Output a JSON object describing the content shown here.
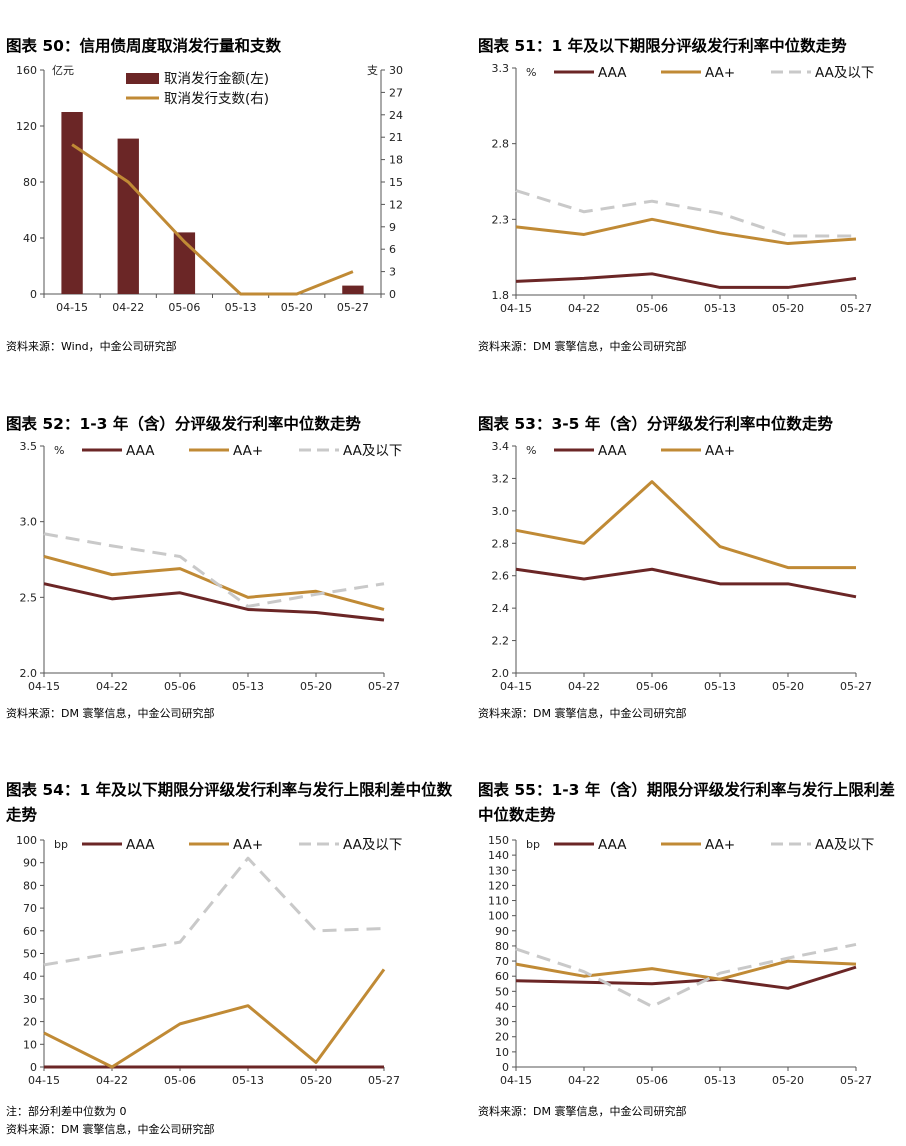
{
  "colors": {
    "aaa": "#6b2626",
    "aaplus": "#c08a35",
    "aabelow": "#c9c9c9",
    "bar": "#6b2626",
    "axis": "#555555"
  },
  "panels": [
    {
      "title": "图表 50：信用债周度取消发行量和支数",
      "source": "资料来源：Wind，中金公司研究部",
      "note": "",
      "chart_data": {
        "type": "bar",
        "categories": [
          "04-15",
          "04-22",
          "05-06",
          "05-13",
          "05-20",
          "05-27"
        ],
        "left_unit": "亿元",
        "right_unit": "支",
        "ylim_left": [
          0,
          160
        ],
        "yticks_left": [
          "0",
          "40",
          "80",
          "120",
          "160"
        ],
        "ylim_right": [
          0,
          30
        ],
        "yticks_right": [
          "0",
          "3",
          "6",
          "9",
          "12",
          "15",
          "18",
          "21",
          "24",
          "27",
          "30"
        ],
        "series": [
          {
            "name": "取消发行金额(左)",
            "kind": "bar",
            "axis": "left",
            "values": [
              130,
              111,
              44,
              0,
              0,
              6
            ]
          },
          {
            "name": "取消发行支数(右)",
            "kind": "line",
            "axis": "right",
            "values": [
              20,
              15,
              7,
              0,
              0,
              3
            ]
          }
        ]
      }
    },
    {
      "title": "图表 51：1 年及以下期限分评级发行利率中位数走势",
      "source": "资料来源：DM 寰擎信息，中金公司研究部",
      "note": "",
      "chart_data": {
        "type": "line",
        "categories": [
          "04-15",
          "04-22",
          "05-06",
          "05-13",
          "05-20",
          "05-27"
        ],
        "unit": "%",
        "ylim": [
          1.8,
          3.3
        ],
        "yticks": [
          "1.8",
          "2.3",
          "2.8",
          "3.3"
        ],
        "series": [
          {
            "name": "AAA",
            "values": [
              1.89,
              1.91,
              1.94,
              1.85,
              1.85,
              1.91
            ]
          },
          {
            "name": "AA+",
            "values": [
              2.25,
              2.2,
              2.3,
              2.21,
              2.14,
              2.17
            ]
          },
          {
            "name": "AA及以下",
            "values": [
              2.49,
              2.35,
              2.42,
              2.34,
              2.19,
              2.19
            ]
          }
        ]
      }
    },
    {
      "title": "图表 52：1-3 年（含）分评级发行利率中位数走势",
      "source": "资料来源：DM 寰擎信息，中金公司研究部",
      "note": "",
      "chart_data": {
        "type": "line",
        "categories": [
          "04-15",
          "04-22",
          "05-06",
          "05-13",
          "05-20",
          "05-27"
        ],
        "unit": "%",
        "ylim": [
          2.0,
          3.5
        ],
        "yticks": [
          "2.0",
          "2.5",
          "3.0",
          "3.5"
        ],
        "series": [
          {
            "name": "AAA",
            "values": [
              2.59,
              2.49,
              2.53,
              2.42,
              2.4,
              2.35
            ]
          },
          {
            "name": "AA+",
            "values": [
              2.77,
              2.65,
              2.69,
              2.5,
              2.54,
              2.42
            ]
          },
          {
            "name": "AA及以下",
            "values": [
              2.92,
              2.84,
              2.77,
              2.44,
              2.52,
              2.59
            ]
          }
        ]
      }
    },
    {
      "title": "图表 53：3-5 年（含）分评级发行利率中位数走势",
      "source": "资料来源：DM 寰擎信息，中金公司研究部",
      "note": "",
      "chart_data": {
        "type": "line",
        "categories": [
          "04-15",
          "04-22",
          "05-06",
          "05-13",
          "05-20",
          "05-27"
        ],
        "unit": "%",
        "ylim": [
          2.0,
          3.4
        ],
        "yticks": [
          "2.0",
          "2.2",
          "2.4",
          "2.6",
          "2.8",
          "3.0",
          "3.2",
          "3.4"
        ],
        "series": [
          {
            "name": "AAA",
            "values": [
              2.64,
              2.58,
              2.64,
              2.55,
              2.55,
              2.47
            ]
          },
          {
            "name": "AA+",
            "values": [
              2.88,
              2.8,
              3.18,
              2.78,
              2.65,
              2.65
            ]
          }
        ]
      }
    },
    {
      "title": "图表 54：1 年及以下期限分评级发行利率与发行上限利差中位数走势",
      "source": "资料来源：DM 寰擎信息，中金公司研究部",
      "note": "注：部分利差中位数为 0",
      "chart_data": {
        "type": "line",
        "categories": [
          "04-15",
          "04-22",
          "05-06",
          "05-13",
          "05-20",
          "05-27"
        ],
        "unit": "bp",
        "ylim": [
          0,
          100
        ],
        "yticks": [
          "0",
          "10",
          "20",
          "30",
          "40",
          "50",
          "60",
          "70",
          "80",
          "90",
          "100"
        ],
        "series": [
          {
            "name": "AAA",
            "values": [
              0,
              0,
              0,
              0,
              0,
              0
            ]
          },
          {
            "name": "AA+",
            "values": [
              15,
              0,
              19,
              27,
              2,
              43
            ]
          },
          {
            "name": "AA及以下",
            "values": [
              45,
              50,
              55,
              92,
              60,
              61
            ]
          }
        ]
      }
    },
    {
      "title": "图表 55：1-3 年（含）期限分评级发行利率与发行上限利差中位数走势",
      "source": "资料来源：DM 寰擎信息，中金公司研究部",
      "note": "",
      "chart_data": {
        "type": "line",
        "categories": [
          "04-15",
          "04-22",
          "05-06",
          "05-13",
          "05-20",
          "05-27"
        ],
        "unit": "bp",
        "ylim": [
          0,
          150
        ],
        "yticks": [
          "0",
          "10",
          "20",
          "30",
          "40",
          "50",
          "60",
          "70",
          "80",
          "90",
          "100",
          "110",
          "120",
          "130",
          "140",
          "150"
        ],
        "series": [
          {
            "name": "AAA",
            "values": [
              57,
              56,
              55,
              58,
              52,
              66
            ]
          },
          {
            "name": "AA+",
            "values": [
              68,
              60,
              65,
              58,
              70,
              68
            ]
          },
          {
            "name": "AA及以下",
            "values": [
              78,
              63,
              40,
              62,
              72,
              81
            ]
          }
        ]
      }
    }
  ]
}
